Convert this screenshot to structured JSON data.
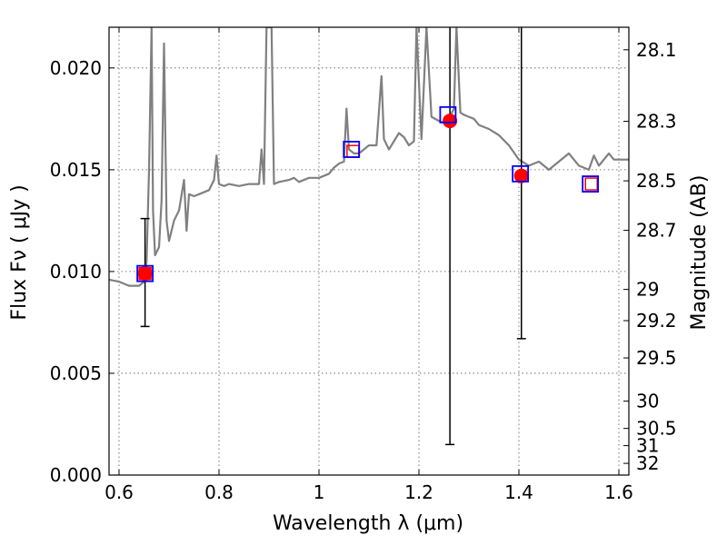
{
  "chart_data": {
    "type": "line",
    "xlabel": "Wavelength  λ (μm)",
    "ylabel_left": "Flux  Fν  ( μJy )",
    "ylabel_right": "Magnitude (AB)",
    "xlim": [
      0.58,
      1.62
    ],
    "ylim": [
      0.0,
      0.022
    ],
    "grid": true,
    "x_ticks": [
      0.6,
      0.8,
      1.0,
      1.2,
      1.4,
      1.6
    ],
    "x_tick_labels": [
      "0.6",
      "0.8",
      "1",
      "1.2",
      "1.4",
      "1.6"
    ],
    "y_ticks": [
      0.0,
      0.005,
      0.01,
      0.015,
      0.02
    ],
    "y_tick_labels": [
      "0.000",
      "0.005",
      "0.010",
      "0.015",
      "0.020"
    ],
    "right_ticks": [
      {
        "mag": 28.1,
        "label": "28.1"
      },
      {
        "mag": 28.3,
        "label": "28.3"
      },
      {
        "mag": 28.5,
        "label": "28.5"
      },
      {
        "mag": 28.7,
        "label": "28.7"
      },
      {
        "mag": 29.0,
        "label": "29"
      },
      {
        "mag": 29.2,
        "label": "29.2"
      },
      {
        "mag": 29.5,
        "label": "29.5"
      },
      {
        "mag": 30.0,
        "label": "30"
      },
      {
        "mag": 30.5,
        "label": "30.5"
      },
      {
        "mag": 31.0,
        "label": "31"
      },
      {
        "mag": 32.0,
        "label": "32"
      }
    ],
    "colors": {
      "spectrum": "#808080",
      "observed": "#ff0000",
      "model_box": "#0000ff",
      "synthetic_box": "#ff0000",
      "errorbar": "#000000",
      "grid": "#555555"
    },
    "spectrum": [
      [
        0.58,
        0.0096
      ],
      [
        0.6,
        0.0095
      ],
      [
        0.62,
        0.0093
      ],
      [
        0.64,
        0.0093
      ],
      [
        0.65,
        0.0095
      ],
      [
        0.655,
        0.0105
      ],
      [
        0.66,
        0.015
      ],
      [
        0.665,
        0.022
      ],
      [
        0.668,
        0.013
      ],
      [
        0.672,
        0.0108
      ],
      [
        0.68,
        0.0112
      ],
      [
        0.685,
        0.0135
      ],
      [
        0.69,
        0.0212
      ],
      [
        0.695,
        0.0125
      ],
      [
        0.7,
        0.0115
      ],
      [
        0.71,
        0.0125
      ],
      [
        0.72,
        0.013
      ],
      [
        0.73,
        0.0145
      ],
      [
        0.735,
        0.012
      ],
      [
        0.74,
        0.0138
      ],
      [
        0.75,
        0.0137
      ],
      [
        0.76,
        0.0138
      ],
      [
        0.78,
        0.014
      ],
      [
        0.79,
        0.0145
      ],
      [
        0.795,
        0.0157
      ],
      [
        0.8,
        0.0143
      ],
      [
        0.81,
        0.0142
      ],
      [
        0.82,
        0.0143
      ],
      [
        0.84,
        0.0142
      ],
      [
        0.86,
        0.0143
      ],
      [
        0.88,
        0.0143
      ],
      [
        0.885,
        0.016
      ],
      [
        0.89,
        0.0143
      ],
      [
        0.895,
        0.022
      ],
      [
        0.905,
        0.022
      ],
      [
        0.91,
        0.0143
      ],
      [
        0.92,
        0.0144
      ],
      [
        0.94,
        0.0145
      ],
      [
        0.95,
        0.0146
      ],
      [
        0.96,
        0.0144
      ],
      [
        0.98,
        0.0146
      ],
      [
        1.0,
        0.0146
      ],
      [
        1.02,
        0.0148
      ],
      [
        1.03,
        0.0151
      ],
      [
        1.04,
        0.0153
      ],
      [
        1.05,
        0.0154
      ],
      [
        1.055,
        0.018
      ],
      [
        1.06,
        0.016
      ],
      [
        1.07,
        0.0158
      ],
      [
        1.08,
        0.0158
      ],
      [
        1.09,
        0.016
      ],
      [
        1.1,
        0.0162
      ],
      [
        1.115,
        0.0162
      ],
      [
        1.125,
        0.0196
      ],
      [
        1.13,
        0.0165
      ],
      [
        1.14,
        0.016
      ],
      [
        1.15,
        0.0164
      ],
      [
        1.16,
        0.0168
      ],
      [
        1.17,
        0.0166
      ],
      [
        1.18,
        0.0162
      ],
      [
        1.19,
        0.0164
      ],
      [
        1.195,
        0.022
      ],
      [
        1.205,
        0.0165
      ],
      [
        1.215,
        0.022
      ],
      [
        1.225,
        0.0176
      ],
      [
        1.24,
        0.0174
      ],
      [
        1.25,
        0.0173
      ],
      [
        1.26,
        0.0175
      ],
      [
        1.27,
        0.018
      ],
      [
        1.275,
        0.022
      ],
      [
        1.283,
        0.0178
      ],
      [
        1.29,
        0.0177
      ],
      [
        1.3,
        0.0176
      ],
      [
        1.31,
        0.0175
      ],
      [
        1.32,
        0.0172
      ],
      [
        1.34,
        0.017
      ],
      [
        1.36,
        0.0167
      ],
      [
        1.38,
        0.0162
      ],
      [
        1.4,
        0.0155
      ],
      [
        1.42,
        0.0152
      ],
      [
        1.44,
        0.0154
      ],
      [
        1.46,
        0.015
      ],
      [
        1.48,
        0.0154
      ],
      [
        1.5,
        0.0158
      ],
      [
        1.52,
        0.0152
      ],
      [
        1.53,
        0.0151
      ],
      [
        1.54,
        0.015
      ],
      [
        1.55,
        0.0157
      ],
      [
        1.56,
        0.0152
      ],
      [
        1.58,
        0.0158
      ],
      [
        1.59,
        0.0155
      ],
      [
        1.62,
        0.0155
      ]
    ],
    "observed": [
      {
        "x": 0.652,
        "y": 0.0099,
        "yerr_low": 0.0073,
        "yerr_high": 0.0126
      },
      {
        "x": 1.262,
        "y": 0.0174,
        "yerr_low": 0.0015,
        "yerr_high": 0.022
      },
      {
        "x": 1.405,
        "y": 0.0147,
        "yerr_low": 0.0067,
        "yerr_high": 0.022
      }
    ],
    "model_boxes": [
      {
        "x": 0.652,
        "y": 0.0099
      },
      {
        "x": 1.065,
        "y": 0.016
      },
      {
        "x": 1.258,
        "y": 0.0177
      },
      {
        "x": 1.403,
        "y": 0.0148
      },
      {
        "x": 1.543,
        "y": 0.0143
      }
    ],
    "synthetic_boxes": [
      {
        "x": 0.652,
        "y": 0.0099
      },
      {
        "x": 1.068,
        "y": 0.0159
      },
      {
        "x": 1.545,
        "y": 0.0143
      }
    ]
  }
}
